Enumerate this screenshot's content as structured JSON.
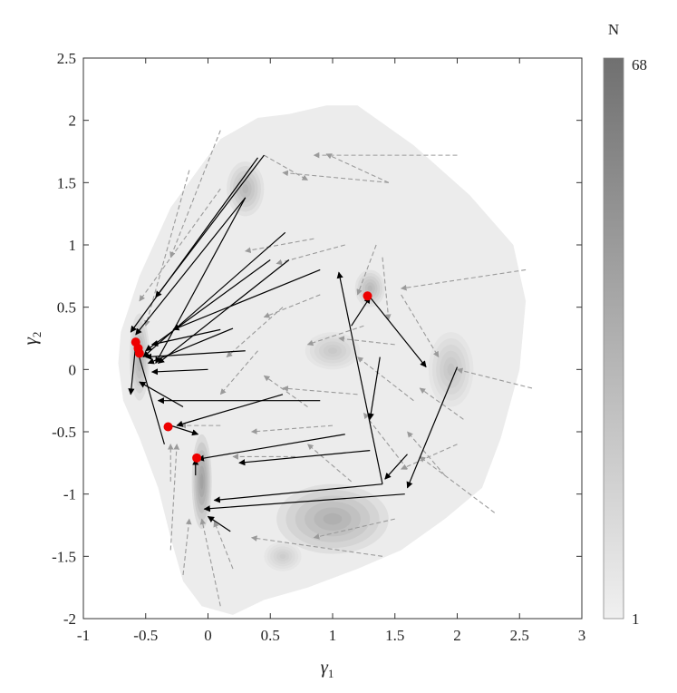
{
  "chart_data": {
    "type": "scatter",
    "xlabel": "γ",
    "xlabel_sub": "1",
    "ylabel": "γ",
    "ylabel_sub": "2",
    "xlim": [
      -1,
      3
    ],
    "ylim": [
      -2,
      2.5
    ],
    "xticks": [
      -1,
      -0.5,
      0,
      0.5,
      1,
      1.5,
      2,
      2.5,
      3
    ],
    "yticks": [
      -2,
      -1.5,
      -1,
      -0.5,
      0,
      0.5,
      1,
      1.5,
      2,
      2.5
    ],
    "xtick_labels": [
      "-1",
      "-0.5",
      "0",
      "0.5",
      "1",
      "1.5",
      "2",
      "2.5",
      "3"
    ],
    "ytick_labels": [
      "-2",
      "-1.5",
      "-1",
      "-0.5",
      "0",
      "0.5",
      "1",
      "1.5",
      "2",
      "2.5"
    ],
    "grid": false,
    "colorbar": {
      "title": "N",
      "min": 1,
      "max": 68,
      "min_label": "1",
      "max_label": "68"
    },
    "density_region": [
      [
        -0.7,
        0.3
      ],
      [
        -0.55,
        0.75
      ],
      [
        -0.3,
        1.3
      ],
      [
        0.1,
        1.85
      ],
      [
        0.4,
        2.02
      ],
      [
        0.65,
        2.05
      ],
      [
        0.95,
        2.12
      ],
      [
        1.2,
        2.12
      ],
      [
        1.65,
        1.8
      ],
      [
        2.1,
        1.4
      ],
      [
        2.45,
        1.0
      ],
      [
        2.55,
        0.55
      ],
      [
        2.5,
        0.0
      ],
      [
        2.35,
        -0.55
      ],
      [
        2.2,
        -0.95
      ],
      [
        1.9,
        -1.2
      ],
      [
        1.55,
        -1.45
      ],
      [
        1.2,
        -1.6
      ],
      [
        0.8,
        -1.75
      ],
      [
        0.45,
        -1.85
      ],
      [
        0.2,
        -1.97
      ],
      [
        -0.05,
        -1.9
      ],
      [
        -0.2,
        -1.7
      ],
      [
        -0.3,
        -1.35
      ],
      [
        -0.4,
        -0.95
      ],
      [
        -0.55,
        -0.55
      ],
      [
        -0.68,
        -0.25
      ],
      [
        -0.72,
        0.05
      ]
    ],
    "density_peaks": [
      {
        "x": 1.0,
        "y": -1.2,
        "rx": 0.45,
        "ry": 0.28,
        "level": 30
      },
      {
        "x": 0.3,
        "y": 1.45,
        "rx": 0.15,
        "ry": 0.22,
        "level": 22
      },
      {
        "x": 1.3,
        "y": 0.65,
        "rx": 0.12,
        "ry": 0.15,
        "level": 22
      },
      {
        "x": 1.0,
        "y": 0.15,
        "rx": 0.22,
        "ry": 0.15,
        "level": 16
      },
      {
        "x": 1.95,
        "y": 0.0,
        "rx": 0.18,
        "ry": 0.3,
        "level": 18
      },
      {
        "x": -0.05,
        "y": -0.9,
        "rx": 0.08,
        "ry": 0.38,
        "level": 40
      },
      {
        "x": -0.55,
        "y": 0.1,
        "rx": 0.08,
        "ry": 0.35,
        "level": 28
      },
      {
        "x": 0.6,
        "y": -1.5,
        "rx": 0.15,
        "ry": 0.12,
        "level": 14
      }
    ],
    "solid_arrows": [
      [
        0.45,
        1.72,
        -0.42,
        0.58
      ],
      [
        0.3,
        1.38,
        -0.58,
        0.28
      ],
      [
        0.3,
        1.38,
        -0.42,
        0.05
      ],
      [
        0.62,
        1.1,
        -0.52,
        0.1
      ],
      [
        0.5,
        0.88,
        -0.5,
        0.15
      ],
      [
        0.65,
        0.88,
        -0.4,
        0.05
      ],
      [
        0.9,
        0.8,
        -0.28,
        0.32
      ],
      [
        0.1,
        0.32,
        -0.45,
        0.2
      ],
      [
        0.2,
        0.33,
        -0.48,
        0.05
      ],
      [
        0.3,
        0.15,
        -0.5,
        0.1
      ],
      [
        0.0,
        0.0,
        -0.45,
        -0.02
      ],
      [
        0.9,
        -0.25,
        -0.4,
        -0.25
      ],
      [
        0.6,
        -0.2,
        -0.25,
        -0.45
      ],
      [
        1.1,
        -0.52,
        -0.08,
        -0.72
      ],
      [
        1.4,
        -0.92,
        0.05,
        -1.05
      ],
      [
        1.58,
        -1.0,
        -0.03,
        -1.12
      ],
      [
        1.4,
        -0.92,
        1.05,
        0.78
      ],
      [
        1.3,
        0.58,
        1.75,
        0.02
      ],
      [
        2.0,
        0.02,
        1.6,
        -0.95
      ],
      [
        1.6,
        -0.68,
        1.42,
        -0.88
      ],
      [
        1.15,
        0.35,
        1.3,
        0.58
      ],
      [
        -0.35,
        -0.6,
        -0.58,
        0.2
      ],
      [
        -0.58,
        0.2,
        -0.62,
        -0.2
      ],
      [
        -0.1,
        -0.85,
        -0.1,
        -0.72
      ],
      [
        0.18,
        -1.3,
        0.0,
        -1.18
      ],
      [
        -0.3,
        -0.45,
        -0.08,
        -0.52
      ],
      [
        -0.2,
        -0.3,
        -0.55,
        -0.1
      ],
      [
        0.4,
        1.7,
        -0.62,
        0.3
      ],
      [
        1.3,
        -0.65,
        0.25,
        -0.75
      ],
      [
        1.38,
        0.1,
        1.3,
        -0.4
      ]
    ],
    "dashed_arrows": [
      [
        2.0,
        1.72,
        0.85,
        1.72
      ],
      [
        0.45,
        1.72,
        0.8,
        1.52
      ],
      [
        1.45,
        1.5,
        0.6,
        1.58
      ],
      [
        1.45,
        1.5,
        0.95,
        1.73
      ],
      [
        2.55,
        0.8,
        1.55,
        0.65
      ],
      [
        2.6,
        -0.15,
        2.0,
        0.0
      ],
      [
        2.3,
        -1.15,
        1.7,
        -0.7
      ],
      [
        2.0,
        -0.6,
        1.55,
        -0.8
      ],
      [
        1.5,
        -1.2,
        0.85,
        -1.35
      ],
      [
        1.4,
        -1.5,
        0.35,
        -1.35
      ],
      [
        0.1,
        -1.9,
        -0.05,
        -1.2
      ],
      [
        0.2,
        -1.6,
        0.05,
        -1.22
      ],
      [
        -0.2,
        -1.65,
        -0.15,
        -1.2
      ],
      [
        -0.3,
        -1.45,
        -0.25,
        -0.6
      ],
      [
        -0.3,
        -0.9,
        -0.3,
        -0.6
      ],
      [
        0.1,
        -0.45,
        -0.22,
        -0.45
      ],
      [
        0.7,
        -0.7,
        0.2,
        -0.7
      ],
      [
        1.0,
        -0.45,
        0.35,
        -0.5
      ],
      [
        1.2,
        -0.2,
        0.6,
        -0.15
      ],
      [
        1.65,
        -0.25,
        1.2,
        0.1
      ],
      [
        1.5,
        0.2,
        1.05,
        0.25
      ],
      [
        1.1,
        1.0,
        0.55,
        0.85
      ],
      [
        0.85,
        1.05,
        0.3,
        0.95
      ],
      [
        1.35,
        1.0,
        1.2,
        0.6
      ],
      [
        0.6,
        0.5,
        0.15,
        0.1
      ],
      [
        0.9,
        0.6,
        0.45,
        0.42
      ],
      [
        1.25,
        0.35,
        0.8,
        0.2
      ],
      [
        -0.15,
        1.6,
        -0.5,
        0.35
      ],
      [
        0.1,
        1.92,
        -0.3,
        0.9
      ],
      [
        0.1,
        1.45,
        -0.55,
        0.55
      ],
      [
        1.6,
        -0.8,
        1.25,
        -0.35
      ],
      [
        1.4,
        0.9,
        1.45,
        0.4
      ],
      [
        1.9,
        -0.85,
        1.6,
        -0.5
      ],
      [
        0.4,
        0.15,
        0.1,
        -0.2
      ],
      [
        0.8,
        -0.3,
        0.45,
        -0.05
      ],
      [
        1.15,
        -0.9,
        0.8,
        -0.6
      ],
      [
        2.05,
        -0.4,
        1.7,
        -0.15
      ],
      [
        1.55,
        0.6,
        1.85,
        0.1
      ]
    ],
    "red_points": [
      {
        "x": -0.58,
        "y": 0.22
      },
      {
        "x": -0.56,
        "y": 0.17
      },
      {
        "x": -0.55,
        "y": 0.13
      },
      {
        "x": -0.32,
        "y": -0.46
      },
      {
        "x": -0.09,
        "y": -0.71
      },
      {
        "x": 1.28,
        "y": 0.59
      }
    ],
    "colors": {
      "solid": "#000000",
      "dashed": "#9a9a9a",
      "point": "#ee0000",
      "density_low": "#f0f0f0",
      "density_high": "#707070"
    }
  }
}
